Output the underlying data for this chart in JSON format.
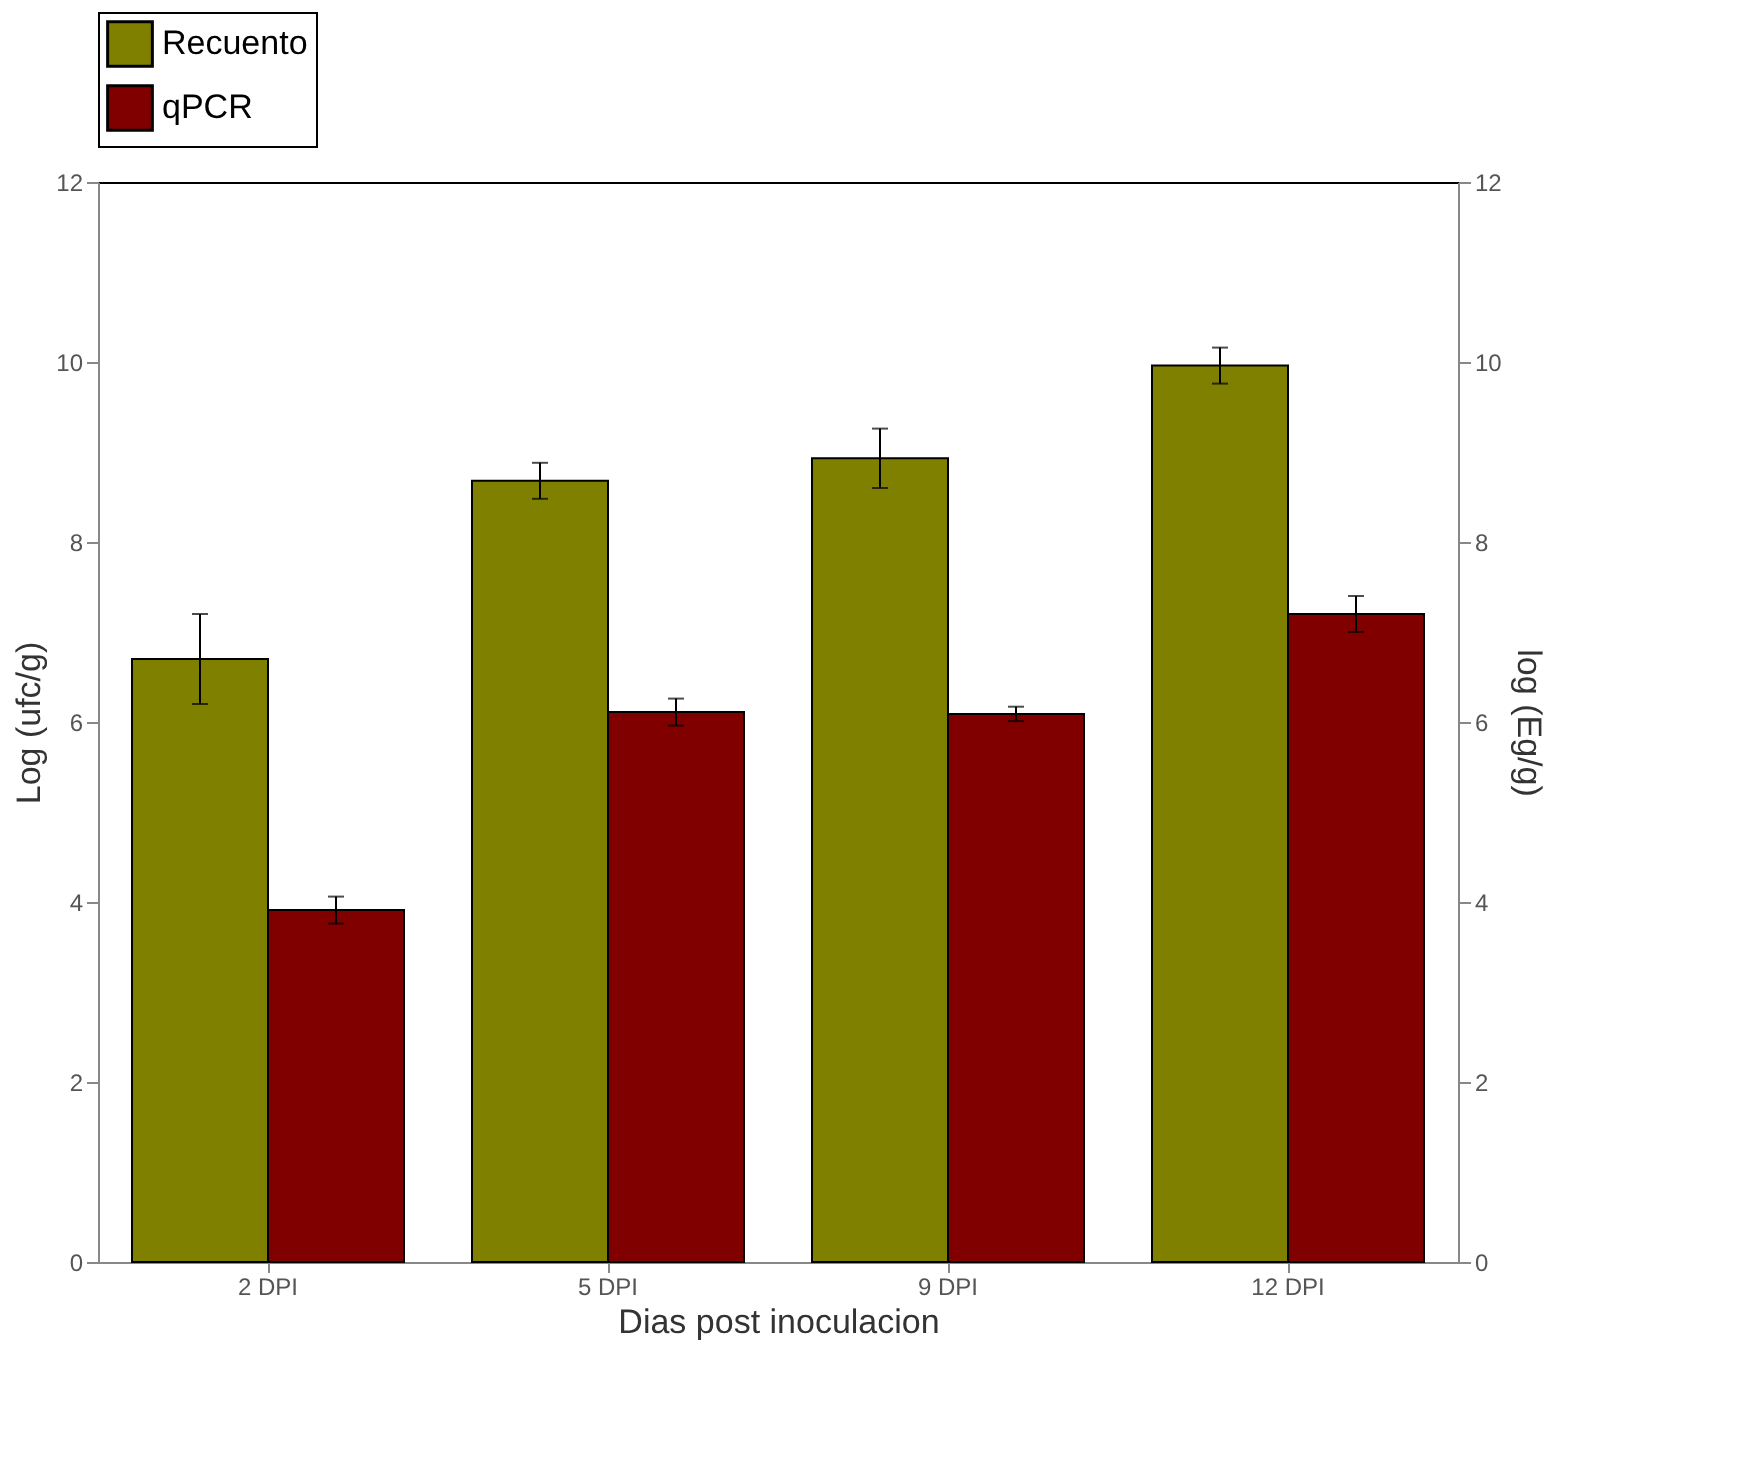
{
  "chart_data": {
    "type": "bar",
    "xlabel": "Dias post inoculacion",
    "ylabel": "Log (ufc/g)",
    "y2label": "log (Eg/g)",
    "categories": [
      "2 DPI",
      "5 DPI",
      "9 DPI",
      "12 DPI"
    ],
    "series": [
      {
        "name": "Recuento",
        "color": "#808000",
        "values": [
          6.7,
          8.68,
          8.93,
          9.96
        ],
        "errors": [
          0.5,
          0.2,
          0.33,
          0.2
        ]
      },
      {
        "name": "qPCR",
        "color": "#800000",
        "axis": "y2",
        "values": [
          3.91,
          6.11,
          6.09,
          7.2
        ],
        "errors": [
          0.15,
          0.15,
          0.08,
          0.2
        ]
      }
    ],
    "ylim": [
      0,
      12
    ],
    "yticks": [
      0,
      2,
      4,
      6,
      8,
      10,
      12
    ],
    "y2lim": [
      0,
      12
    ],
    "y2ticks": [
      0,
      2,
      4,
      6,
      8,
      10,
      12
    ],
    "grid": false,
    "legend": "top"
  }
}
